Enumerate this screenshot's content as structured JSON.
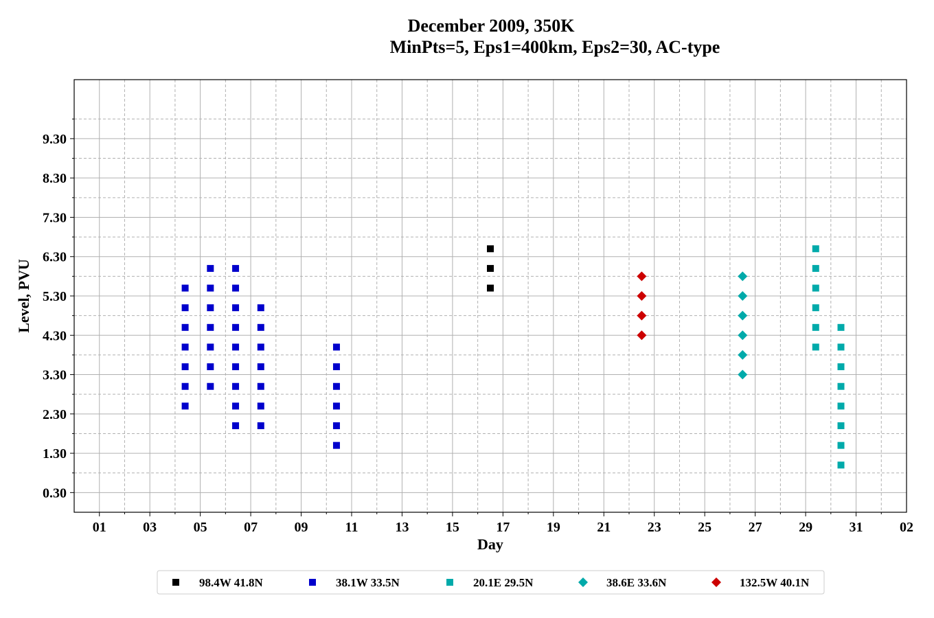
{
  "chart_data": {
    "type": "scatter",
    "title": "December 2009, 350K",
    "subtitle": "MinPts=5, Eps1=400km, Eps2=30, AC-type",
    "xlabel": "Day",
    "ylabel": "Level, PVU",
    "x_tick_labels": [
      "01",
      "03",
      "05",
      "07",
      "09",
      "11",
      "13",
      "15",
      "17",
      "19",
      "21",
      "23",
      "25",
      "27",
      "29",
      "31",
      "02"
    ],
    "y_tick_labels": [
      "0.30",
      "1.30",
      "2.30",
      "3.30",
      "4.30",
      "5.30",
      "6.30",
      "7.30",
      "8.30",
      "9.30"
    ],
    "xlim": [
      0,
      33
    ],
    "ylim": [
      -0.2,
      10.8
    ],
    "grid": true,
    "legend_position": "bottom-center",
    "series": [
      {
        "name": "98.4W 41.8N",
        "marker": "square",
        "color": "#000000",
        "points": [
          [
            16.5,
            5.5
          ],
          [
            16.5,
            6.0
          ],
          [
            16.5,
            6.5
          ]
        ]
      },
      {
        "name": "38.1W 33.5N",
        "marker": "square",
        "color": "#0000cc",
        "points": [
          [
            4.4,
            2.5
          ],
          [
            4.4,
            3.0
          ],
          [
            4.4,
            3.5
          ],
          [
            4.4,
            4.0
          ],
          [
            4.4,
            4.5
          ],
          [
            4.4,
            5.0
          ],
          [
            4.4,
            5.5
          ],
          [
            5.4,
            3.0
          ],
          [
            5.4,
            3.5
          ],
          [
            5.4,
            4.0
          ],
          [
            5.4,
            4.5
          ],
          [
            5.4,
            5.0
          ],
          [
            5.4,
            5.5
          ],
          [
            5.4,
            6.0
          ],
          [
            6.4,
            2.0
          ],
          [
            6.4,
            2.5
          ],
          [
            6.4,
            3.0
          ],
          [
            6.4,
            3.5
          ],
          [
            6.4,
            4.0
          ],
          [
            6.4,
            4.5
          ],
          [
            6.4,
            5.0
          ],
          [
            6.4,
            5.5
          ],
          [
            6.4,
            6.0
          ],
          [
            7.4,
            2.0
          ],
          [
            7.4,
            2.5
          ],
          [
            7.4,
            3.0
          ],
          [
            7.4,
            3.5
          ],
          [
            7.4,
            4.0
          ],
          [
            7.4,
            4.5
          ],
          [
            7.4,
            5.0
          ],
          [
            10.4,
            1.5
          ],
          [
            10.4,
            2.0
          ],
          [
            10.4,
            2.5
          ],
          [
            10.4,
            3.0
          ],
          [
            10.4,
            3.5
          ],
          [
            10.4,
            4.0
          ]
        ]
      },
      {
        "name": "20.1E 29.5N",
        "marker": "square",
        "color": "#00aaaa",
        "points": [
          [
            29.4,
            4.0
          ],
          [
            29.4,
            4.5
          ],
          [
            29.4,
            5.0
          ],
          [
            29.4,
            5.5
          ],
          [
            29.4,
            6.0
          ],
          [
            29.4,
            6.5
          ],
          [
            30.4,
            1.0
          ],
          [
            30.4,
            1.5
          ],
          [
            30.4,
            2.0
          ],
          [
            30.4,
            2.5
          ],
          [
            30.4,
            3.0
          ],
          [
            30.4,
            3.5
          ],
          [
            30.4,
            4.0
          ],
          [
            30.4,
            4.5
          ]
        ]
      },
      {
        "name": "38.6E 33.6N",
        "marker": "diamond",
        "color": "#00aaaa",
        "points": [
          [
            26.5,
            3.3
          ],
          [
            26.5,
            3.8
          ],
          [
            26.5,
            4.3
          ],
          [
            26.5,
            4.8
          ],
          [
            26.5,
            5.3
          ],
          [
            26.5,
            5.8
          ]
        ]
      },
      {
        "name": "132.5W 40.1N",
        "marker": "diamond",
        "color": "#cc0000",
        "points": [
          [
            22.5,
            4.3
          ],
          [
            22.5,
            4.8
          ],
          [
            22.5,
            5.3
          ],
          [
            22.5,
            5.8
          ]
        ]
      }
    ]
  }
}
